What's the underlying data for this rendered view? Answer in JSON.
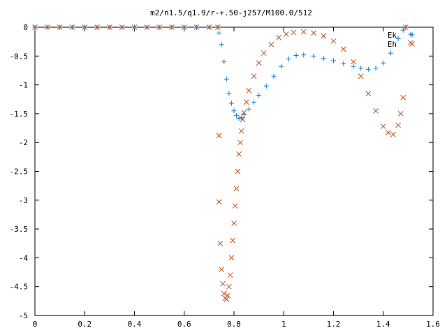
{
  "chart_data": {
    "type": "scatter",
    "title": "m2/n1.5/q1.9/r-+.50-j257/M100.0/512",
    "xlabel": "",
    "ylabel": "",
    "xlim": [
      0,
      1.6
    ],
    "ylim": [
      -5,
      0
    ],
    "x_ticks": [
      0,
      0.2,
      0.4,
      0.6,
      0.8,
      1,
      1.2,
      1.4,
      1.6
    ],
    "x_tick_labels": [
      "0",
      "0.2",
      "0.4",
      "0.6",
      "0.8",
      "1",
      "1.2",
      "1.4",
      "1.6"
    ],
    "y_ticks": [
      0,
      -0.5,
      -1,
      -1.5,
      -2,
      -2.5,
      -3,
      -3.5,
      -4,
      -4.5,
      -5
    ],
    "y_tick_labels": [
      "0",
      "-0.5",
      "-1",
      "-1.5",
      "-2",
      "-2.5",
      "-3",
      "-3.5",
      "-4",
      "-4.5",
      "-5"
    ],
    "grid": false,
    "legend_position": "top-right",
    "colors": {
      "Ek": "#0a7ed6",
      "Eh": "#c0501a",
      "axis": "#000000"
    },
    "series": [
      {
        "name": "Ek",
        "marker": "plus",
        "points": [
          [
            0.0,
            0.0
          ],
          [
            0.05,
            0.0
          ],
          [
            0.1,
            0.0
          ],
          [
            0.15,
            0.0
          ],
          [
            0.2,
            0.0
          ],
          [
            0.25,
            0.0
          ],
          [
            0.3,
            0.0
          ],
          [
            0.35,
            0.0
          ],
          [
            0.4,
            0.0
          ],
          [
            0.45,
            0.0
          ],
          [
            0.5,
            0.0
          ],
          [
            0.55,
            0.0
          ],
          [
            0.6,
            0.0
          ],
          [
            0.65,
            0.0
          ],
          [
            0.7,
            0.0
          ],
          [
            0.735,
            0.0
          ],
          [
            0.74,
            -0.1
          ],
          [
            0.75,
            -0.3
          ],
          [
            0.76,
            -0.6
          ],
          [
            0.77,
            -0.9
          ],
          [
            0.78,
            -1.15
          ],
          [
            0.79,
            -1.32
          ],
          [
            0.8,
            -1.45
          ],
          [
            0.81,
            -1.53
          ],
          [
            0.82,
            -1.58
          ],
          [
            0.83,
            -1.57
          ],
          [
            0.84,
            -1.52
          ],
          [
            0.86,
            -1.42
          ],
          [
            0.88,
            -1.3
          ],
          [
            0.9,
            -1.18
          ],
          [
            0.93,
            -1.02
          ],
          [
            0.96,
            -0.85
          ],
          [
            0.99,
            -0.68
          ],
          [
            1.02,
            -0.55
          ],
          [
            1.05,
            -0.49
          ],
          [
            1.08,
            -0.48
          ],
          [
            1.12,
            -0.5
          ],
          [
            1.16,
            -0.54
          ],
          [
            1.2,
            -0.58
          ],
          [
            1.24,
            -0.63
          ],
          [
            1.28,
            -0.68
          ],
          [
            1.31,
            -0.71
          ],
          [
            1.34,
            -0.73
          ],
          [
            1.37,
            -0.71
          ],
          [
            1.4,
            -0.62
          ],
          [
            1.43,
            -0.45
          ],
          [
            1.46,
            -0.2
          ],
          [
            1.48,
            -0.05
          ],
          [
            1.49,
            0.0
          ],
          [
            1.51,
            -0.12
          ]
        ]
      },
      {
        "name": "Eh",
        "marker": "cross",
        "points": [
          [
            0.0,
            0.0
          ],
          [
            0.05,
            0.0
          ],
          [
            0.1,
            0.0
          ],
          [
            0.15,
            0.0
          ],
          [
            0.2,
            0.0
          ],
          [
            0.25,
            0.0
          ],
          [
            0.3,
            0.0
          ],
          [
            0.35,
            0.0
          ],
          [
            0.4,
            0.0
          ],
          [
            0.45,
            0.0
          ],
          [
            0.5,
            0.0
          ],
          [
            0.55,
            0.0
          ],
          [
            0.6,
            0.0
          ],
          [
            0.65,
            0.0
          ],
          [
            0.7,
            0.0
          ],
          [
            0.735,
            0.0
          ],
          [
            0.74,
            -1.88
          ],
          [
            0.74,
            -3.03
          ],
          [
            0.745,
            -3.75
          ],
          [
            0.75,
            -4.2
          ],
          [
            0.755,
            -4.45
          ],
          [
            0.76,
            -4.62
          ],
          [
            0.765,
            -4.7
          ],
          [
            0.77,
            -4.72
          ],
          [
            0.775,
            -4.65
          ],
          [
            0.78,
            -4.5
          ],
          [
            0.785,
            -4.3
          ],
          [
            0.79,
            -4.0
          ],
          [
            0.795,
            -3.7
          ],
          [
            0.8,
            -3.4
          ],
          [
            0.805,
            -3.1
          ],
          [
            0.81,
            -2.8
          ],
          [
            0.815,
            -2.5
          ],
          [
            0.82,
            -2.2
          ],
          [
            0.825,
            -2.0
          ],
          [
            0.83,
            -1.8
          ],
          [
            0.835,
            -1.6
          ],
          [
            0.84,
            -1.48
          ],
          [
            0.85,
            -1.3
          ],
          [
            0.86,
            -1.1
          ],
          [
            0.88,
            -0.85
          ],
          [
            0.9,
            -0.62
          ],
          [
            0.92,
            -0.45
          ],
          [
            0.95,
            -0.3
          ],
          [
            0.98,
            -0.18
          ],
          [
            1.01,
            -0.12
          ],
          [
            1.04,
            -0.09
          ],
          [
            1.08,
            -0.08
          ],
          [
            1.12,
            -0.1
          ],
          [
            1.16,
            -0.15
          ],
          [
            1.2,
            -0.24
          ],
          [
            1.24,
            -0.38
          ],
          [
            1.28,
            -0.6
          ],
          [
            1.31,
            -0.85
          ],
          [
            1.34,
            -1.15
          ],
          [
            1.37,
            -1.45
          ],
          [
            1.4,
            -1.72
          ],
          [
            1.42,
            -1.83
          ],
          [
            1.44,
            -1.86
          ],
          [
            1.46,
            -1.7
          ],
          [
            1.47,
            -1.5
          ],
          [
            1.48,
            -1.22
          ],
          [
            1.49,
            0.0
          ],
          [
            1.51,
            -0.27
          ]
        ]
      }
    ]
  }
}
